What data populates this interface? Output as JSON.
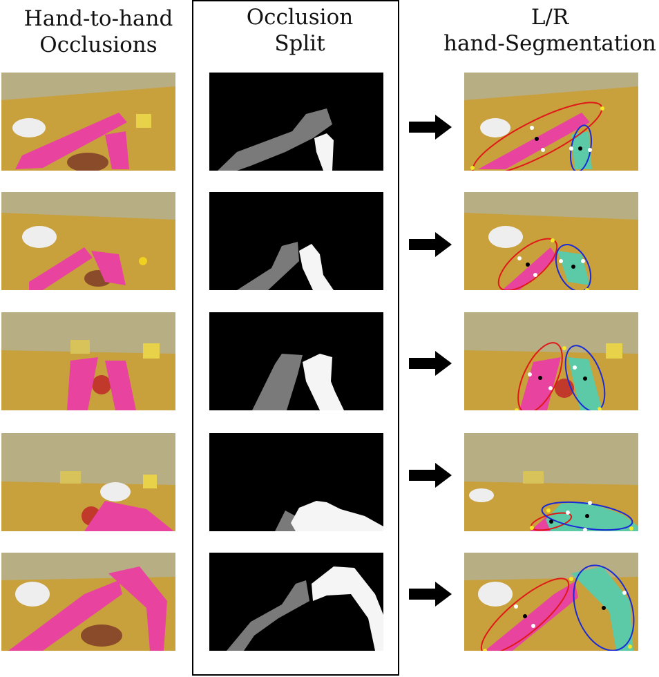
{
  "columns": {
    "left": {
      "line1": "Hand-to-hand",
      "line2": "Occlusions"
    },
    "middle": {
      "line1": "Occlusion",
      "line2": "Split"
    },
    "right": {
      "line1": "L/R",
      "line2": "hand-Segmentation"
    }
  },
  "colors": {
    "left_hand_overlay": "#e8449f",
    "right_hand_overlay": "#5cc9a7",
    "left_ellipse": "#e01818",
    "right_ellipse": "#1a2bd6",
    "mask_left": "#7a7a7a",
    "mask_right": "#f5f5f5",
    "table": "#c8a03c",
    "wall": "#b8ae84"
  },
  "rows": 5,
  "icons": [
    "arrow-right-icon"
  ]
}
